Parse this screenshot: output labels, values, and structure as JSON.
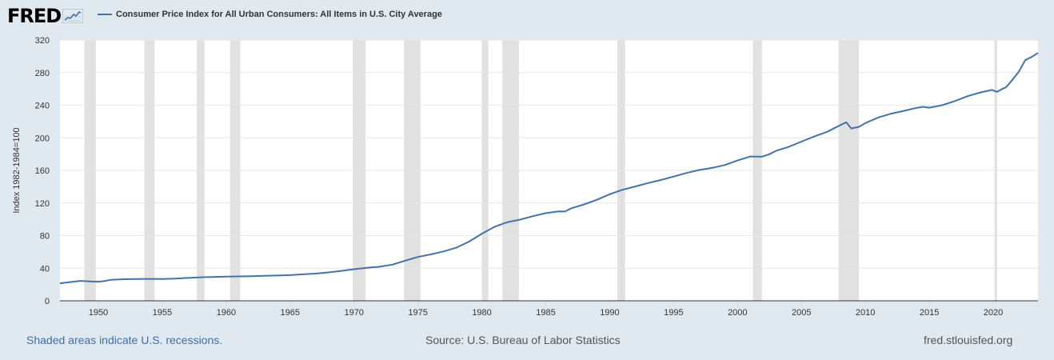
{
  "brand": {
    "name": "FRED"
  },
  "colors": {
    "line": "#4572a7",
    "recession": "#e1e1e1",
    "plot_bg": "#ffffff",
    "page_bg": "#e1e9f0",
    "grid": "#e6e6e6",
    "link": "#3f6ea6"
  },
  "footer": {
    "note": "Shaded areas indicate U.S. recessions.",
    "source": "Source: U.S. Bureau of Labor Statistics",
    "site": "fred.stlouisfed.org"
  },
  "chart_data": {
    "type": "line",
    "title": "",
    "xlabel": "",
    "ylabel": "Index 1982-1984=100",
    "xlim": [
      1947.0,
      2023.5
    ],
    "ylim": [
      0,
      320
    ],
    "grid": true,
    "legend": "top-left",
    "x_ticks": [
      "1950",
      "1955",
      "1960",
      "1965",
      "1970",
      "1975",
      "1980",
      "1985",
      "1990",
      "1995",
      "2000",
      "2005",
      "2010",
      "2015",
      "2020"
    ],
    "y_ticks": [
      "0",
      "40",
      "80",
      "120",
      "160",
      "200",
      "240",
      "280",
      "320"
    ],
    "recessions": [
      [
        1948.9,
        1949.8
      ],
      [
        1953.6,
        1954.4
      ],
      [
        1957.7,
        1958.3
      ],
      [
        1960.3,
        1961.1
      ],
      [
        1969.9,
        1970.9
      ],
      [
        1973.9,
        1975.2
      ],
      [
        1980.0,
        1980.5
      ],
      [
        1981.6,
        1982.9
      ],
      [
        1990.6,
        1991.2
      ],
      [
        2001.2,
        2001.9
      ],
      [
        2007.9,
        2009.5
      ],
      [
        2020.1,
        2020.3
      ]
    ],
    "series": [
      {
        "name": "Consumer Price Index for All Urban Consumers: All Items in U.S. City Average",
        "x": [
          1947.0,
          1948.0,
          1948.6,
          1949.5,
          1950.0,
          1950.5,
          1951.0,
          1952.0,
          1953.0,
          1954.0,
          1955.0,
          1956.0,
          1957.0,
          1958.0,
          1959.0,
          1960.0,
          1961.0,
          1962.0,
          1963.0,
          1964.0,
          1965.0,
          1966.0,
          1967.0,
          1968.0,
          1969.0,
          1970.0,
          1971.0,
          1972.0,
          1973.0,
          1974.0,
          1975.0,
          1976.0,
          1977.0,
          1978.0,
          1979.0,
          1980.0,
          1981.0,
          1982.0,
          1983.0,
          1984.0,
          1985.0,
          1986.0,
          1986.5,
          1987.0,
          1988.0,
          1989.0,
          1990.0,
          1991.0,
          1992.0,
          1993.0,
          1994.0,
          1995.0,
          1996.0,
          1997.0,
          1998.0,
          1999.0,
          2000.0,
          2001.0,
          2001.9,
          2002.5,
          2003.0,
          2004.0,
          2005.0,
          2006.0,
          2007.0,
          2008.0,
          2008.5,
          2008.9,
          2009.5,
          2010.0,
          2011.0,
          2012.0,
          2013.0,
          2014.0,
          2014.5,
          2015.0,
          2016.0,
          2017.0,
          2018.0,
          2019.0,
          2019.9,
          2020.3,
          2020.7,
          2021.0,
          2021.5,
          2022.0,
          2022.5,
          2023.0,
          2023.5
        ],
        "values": [
          21.5,
          23.4,
          24.4,
          23.7,
          23.5,
          24.2,
          25.8,
          26.5,
          26.7,
          26.9,
          26.8,
          27.2,
          28.1,
          28.9,
          29.2,
          29.6,
          29.9,
          30.2,
          30.6,
          31.0,
          31.5,
          32.5,
          33.4,
          34.8,
          36.7,
          38.8,
          40.5,
          41.8,
          44.4,
          49.3,
          53.8,
          56.9,
          60.6,
          65.2,
          72.6,
          82.4,
          90.9,
          96.5,
          99.6,
          103.9,
          107.6,
          109.6,
          109.5,
          113.6,
          118.3,
          124.0,
          130.7,
          136.2,
          140.3,
          144.5,
          148.2,
          152.4,
          156.9,
          160.5,
          163.0,
          166.6,
          172.2,
          177.1,
          176.8,
          179.9,
          184.0,
          188.9,
          195.3,
          201.6,
          207.3,
          215.3,
          219.0,
          211.4,
          213.5,
          218.1,
          224.9,
          229.6,
          233.0,
          236.7,
          238.0,
          237.0,
          240.0,
          245.1,
          251.1,
          255.7,
          258.7,
          256.4,
          259.9,
          262.0,
          271.1,
          281.1,
          295.3,
          299.2,
          304.1
        ]
      }
    ]
  }
}
